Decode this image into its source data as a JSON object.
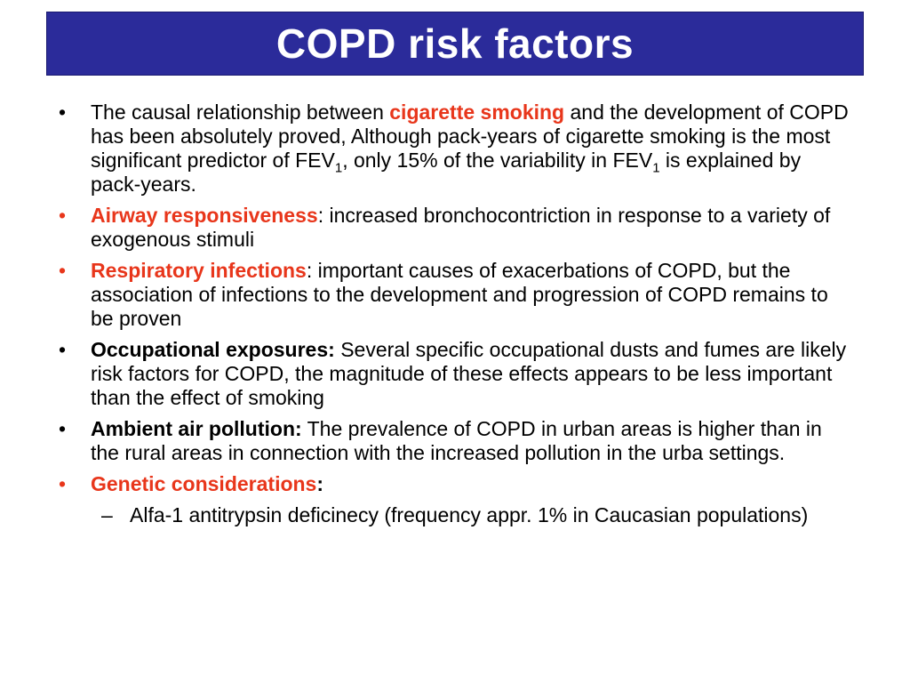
{
  "slide": {
    "title": "COPD risk factors"
  },
  "colors": {
    "title_background": "#2b2b9a",
    "accent_red": "#e8361b"
  },
  "bullet_char": "•",
  "dash_char": "–",
  "items": [
    {
      "t1": "The causal relationship between ",
      "kw": "cigarette smoking",
      "t2": " and the development of COPD has been absolutely proved, Although pack-years of cigarette smoking is the most significant predictor of FEV",
      "s1": "1",
      "t3": ", only 15% of the variability in FEV",
      "s2": "1",
      "t4": " is explained by pack-years."
    },
    {
      "kw": "Airway responsiveness",
      "text": ": increased bronchocontriction in response to a variety of exogenous stimuli"
    },
    {
      "kw": "Respiratory infections",
      "text": ": important causes of exacerbations of COPD, but the association of infections to the development and progression of COPD remains to be proven"
    },
    {
      "kw": "Occupational exposures:",
      "text": " Several specific occupational dusts and fumes are likely risk factors for COPD, the magnitude of these effects appears to be less important than the effect of smoking"
    },
    {
      "kw": "Ambient air pollution:",
      "text": " The prevalence of COPD in urban areas is higher than in the rural areas in connection with the increased pollution in the urba settings."
    },
    {
      "kw": "Genetic considerations",
      "colon": ":",
      "subitems": [
        {
          "text": "Alfa-1 antitrypsin deficinecy (frequency appr. 1% in Caucasian populations)"
        }
      ]
    }
  ]
}
